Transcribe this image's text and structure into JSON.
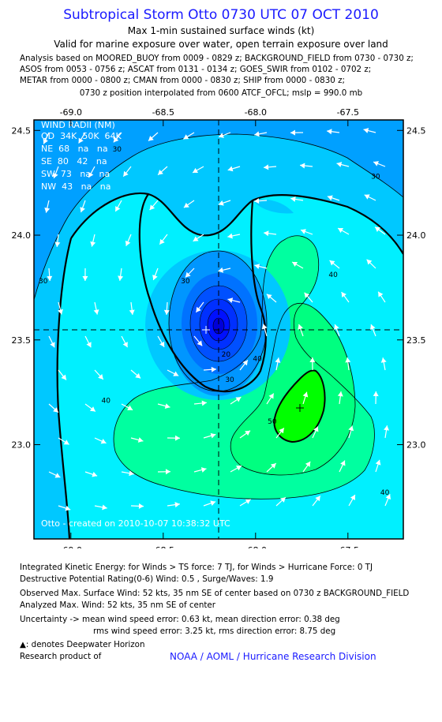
{
  "header": {
    "title": "Subtropical Storm Otto 0730 UTC 07 OCT 2010",
    "subtitle1": "Max 1-min sustained surface winds (kt)",
    "subtitle2": "Valid for marine exposure over water, open terrain exposure over land",
    "analysis_lines": [
      "Analysis based on MOORED_BUOY from 0009 - 0829 z; BACKGROUND_FIELD from 0730 - 0730 z;",
      "ASOS from 0053 - 0756 z; ASCAT from 0131 - 0134 z; GOES_SWIR from 0102 - 0702 z;",
      "METAR from 0000 - 0800 z; CMAN from 0000 - 0830 z; SHIP from 0000 - 0830 z;"
    ],
    "position_line": "0730 z position interpolated from 0600 ATCF_OFCL; mslp = 990.0 mb"
  },
  "wind_radii": {
    "title": "WIND RADII (NM)",
    "header": "QD  34K  50K  64K",
    "rows": [
      "NE  68   na   na",
      "SE  80   42   na",
      "SW  73   na   na",
      "NW  43   na   na"
    ]
  },
  "created_text": "Otto - created on 2010-10-07 10:38:32 UTC",
  "chart_data": {
    "type": "heatmap",
    "title": "Subtropical Storm Otto 0730 UTC 07 OCT 2010",
    "xlabel": "",
    "ylabel": "",
    "xlim": [
      -69.2,
      -67.2
    ],
    "ylim": [
      22.55,
      24.55
    ],
    "x_ticks": [
      -69.0,
      -68.5,
      -68.0,
      -67.5
    ],
    "y_ticks": [
      23.0,
      23.5,
      24.0,
      24.5
    ],
    "x_tick_labels": [
      "-69.0",
      "-68.5",
      "-68.0",
      "-67.5"
    ],
    "y_tick_labels": [
      "23.0",
      "23.5",
      "24.0",
      "24.5"
    ],
    "center": {
      "lon": -68.2,
      "lat": 23.55
    },
    "max_wind_location": {
      "lon": -67.75,
      "lat": 23.17
    },
    "contour_labels": [
      {
        "text": "30",
        "lon": -68.75,
        "lat": 24.4
      },
      {
        "text": "30",
        "lon": -67.35,
        "lat": 24.27
      },
      {
        "text": "30",
        "lon": -69.15,
        "lat": 23.77
      },
      {
        "text": "30",
        "lon": -68.38,
        "lat": 23.77
      },
      {
        "text": "20",
        "lon": -68.16,
        "lat": 23.42
      },
      {
        "text": "30",
        "lon": -68.14,
        "lat": 23.3
      },
      {
        "text": "40",
        "lon": -67.58,
        "lat": 23.8
      },
      {
        "text": "40",
        "lon": -67.99,
        "lat": 23.4
      },
      {
        "text": "40",
        "lon": -68.81,
        "lat": 23.2
      },
      {
        "text": "40",
        "lon": -67.3,
        "lat": 22.76
      },
      {
        "text": "50",
        "lon": -67.91,
        "lat": 23.1
      }
    ],
    "contour_levels": [
      10,
      20,
      30,
      34,
      40,
      50
    ],
    "colors": {
      "lt20": "#0028ff",
      "20-30": "#0072ff",
      "lt30": "#00a0ff",
      "30-34": "#00c8ff",
      "34-40": "#00f0ff",
      "40-50": "#00ffa0",
      "50-64": "#00ff00"
    }
  },
  "footer": {
    "ike": "Integrated Kinetic Energy:  for Winds > TS force: 7 TJ,  for Winds > Hurricane Force: 0 TJ",
    "dpr": "Destructive Potential Rating(0-6)   Wind: 0.5 , Surge/Waves: 1.9",
    "obs_max": "Observed Max. Surface Wind: 52 kts, 35 nm SE of center based on 0730 z BACKGROUND_FIELD",
    "ana_max": "Analyzed Max. Wind: 52 kts, 35 nm SE of center",
    "unc1": "Uncertainty -> mean wind speed error: 0.63 kt,   mean direction error: 0.38 deg",
    "unc2": "rms wind speed error: 3.25 kt,   rms direction error: 8.75 deg",
    "dwh": ": denotes Deepwater Horizon",
    "research": "Research product of",
    "credit": "NOAA / AOML / Hurricane Research Division"
  }
}
